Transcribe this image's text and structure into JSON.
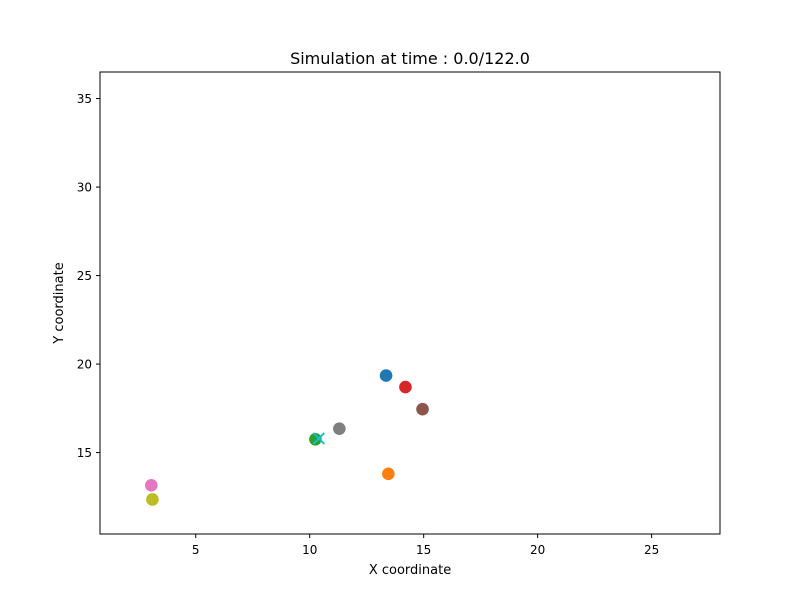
{
  "chart_data": {
    "type": "scatter",
    "title": "Simulation at time : 0.0/122.0",
    "xlabel": "X coordinate",
    "ylabel": "Y coordinate",
    "xlim": [
      0.8,
      28.0
    ],
    "ylim": [
      10.4,
      36.5
    ],
    "xticks": [
      5,
      10,
      15,
      20,
      25
    ],
    "yticks": [
      15,
      20,
      25,
      30,
      35
    ],
    "grid": false,
    "legend": "none",
    "points": [
      {
        "x": 13.35,
        "y": 19.35,
        "color": "#1f77b4",
        "marker": "circle"
      },
      {
        "x": 13.45,
        "y": 13.8,
        "color": "#ff7f0e",
        "marker": "circle"
      },
      {
        "x": 10.25,
        "y": 15.75,
        "color": "#2ca02c",
        "marker": "circle"
      },
      {
        "x": 14.2,
        "y": 18.7,
        "color": "#d62728",
        "marker": "circle"
      },
      {
        "x": 14.95,
        "y": 17.45,
        "color": "#8c564b",
        "marker": "circle"
      },
      {
        "x": 3.05,
        "y": 13.15,
        "color": "#e377c2",
        "marker": "circle"
      },
      {
        "x": 11.3,
        "y": 16.35,
        "color": "#7f7f7f",
        "marker": "circle"
      },
      {
        "x": 3.1,
        "y": 12.35,
        "color": "#bcbd22",
        "marker": "circle"
      },
      {
        "x": 10.4,
        "y": 15.8,
        "color": "#17becf",
        "marker": "x"
      }
    ]
  }
}
